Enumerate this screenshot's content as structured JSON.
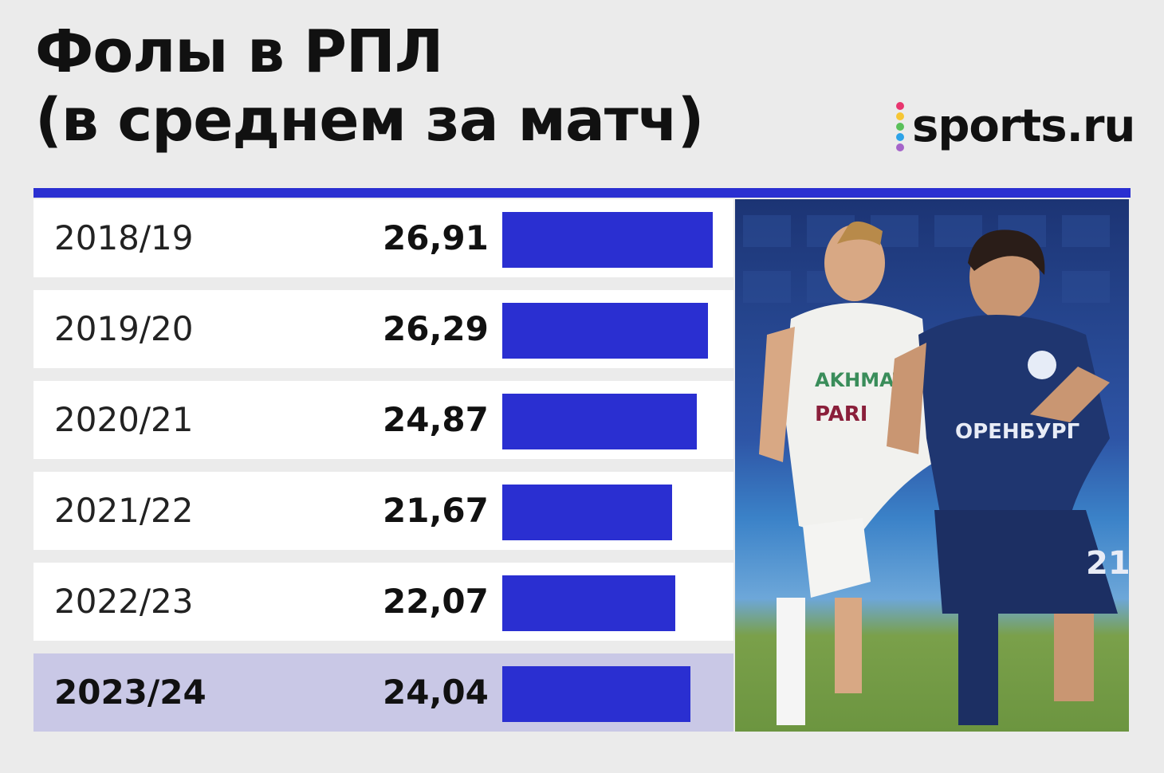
{
  "chart_data": {
    "type": "bar",
    "orientation": "horizontal",
    "title_lines": [
      "Фолы в РПЛ",
      "(в среднем за матч)"
    ],
    "categories": [
      "2018/19",
      "2019/20",
      "2020/21",
      "2021/22",
      "2022/23",
      "2023/24"
    ],
    "value_labels": [
      "26,91",
      "26,29",
      "24,87",
      "21,67",
      "22,07",
      "24,04"
    ],
    "values": [
      26.91,
      26.29,
      24.87,
      21.67,
      22.07,
      24.04
    ],
    "highlighted_category": "2023/24",
    "bar_color": "#2a2fd1",
    "highlight_row_color": "#c9c8e6"
  },
  "brand": {
    "logo_text": "sports.ru",
    "dot_colors": [
      "#e8366f",
      "#f6c634",
      "#5ac05a",
      "#2ea3e8",
      "#a564c9"
    ]
  },
  "photo": {
    "description_icon": "football-players-photo"
  }
}
